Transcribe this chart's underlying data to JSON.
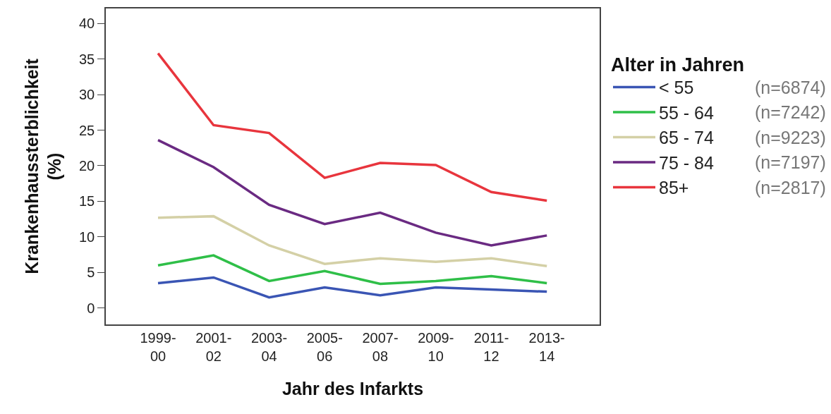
{
  "chart_data": {
    "type": "line",
    "xlabel": "Jahr des Infarkts",
    "ylabel": "Krankenhaussterblichkeit (%)",
    "legend_title": "Alter in Jahren",
    "categories": [
      "1999-00",
      "2001-02",
      "2003-04",
      "2005-06",
      "2007-08",
      "2009-10",
      "2011-12",
      "2013-14"
    ],
    "series": [
      {
        "name": "< 55",
        "color": "#3a55b4",
        "values": [
          3.5,
          4.3,
          1.5,
          2.9,
          1.8,
          2.9,
          2.6,
          2.3
        ]
      },
      {
        "name": "55 - 64",
        "color": "#2fbf48",
        "values": [
          6.0,
          7.4,
          3.8,
          5.2,
          3.4,
          3.8,
          4.5,
          3.5
        ]
      },
      {
        "name": "65 - 74",
        "color": "#d4d0a6",
        "values": [
          12.7,
          12.9,
          8.8,
          6.2,
          7.0,
          6.5,
          7.0,
          5.9
        ]
      },
      {
        "name": "75 - 84",
        "color": "#6a2a82",
        "values": [
          23.6,
          19.8,
          14.5,
          11.8,
          13.4,
          10.6,
          8.8,
          10.2
        ]
      },
      {
        "name": "85+",
        "color": "#e8353d",
        "values": [
          35.8,
          25.7,
          24.6,
          18.3,
          20.4,
          20.1,
          16.3,
          15.1
        ]
      }
    ],
    "annotations": [
      "(n=6874)",
      "(n=7242)",
      "(n=9223)",
      "(n=7197)",
      "(n=2817)"
    ],
    "ylim": [
      -2.3,
      42.1
    ],
    "yticks": [
      0,
      5,
      10,
      15,
      20,
      25,
      30,
      35,
      40
    ],
    "grid": false,
    "legend": "right",
    "marker": "none",
    "line_style": "solid"
  }
}
